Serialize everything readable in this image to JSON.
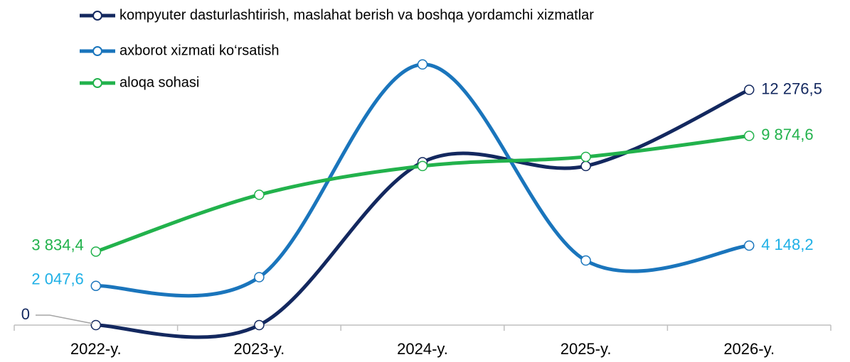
{
  "chart_data": {
    "type": "line",
    "smooth": true,
    "categories": [
      "2022-y.",
      "2023-y.",
      "2024-y.",
      "2025-y.",
      "2026-y."
    ],
    "ylim": [
      0,
      14000
    ],
    "legend": "top-left",
    "series": [
      {
        "name": "kompyuter dasturlashtirish, maslahat berish va boshqa yordamchi xizmatlar",
        "color": "#13285f",
        "label_color": "#13285f",
        "values": [
          0,
          0,
          8500,
          8300,
          12276.5
        ],
        "value_labels": [
          "0",
          null,
          null,
          null,
          "12 276,5"
        ]
      },
      {
        "name": "axborot xizmati ko‘rsatish",
        "color": "#1a75bc",
        "label_color": "#1fb0e6",
        "values": [
          2047.6,
          2500,
          13600,
          3370,
          4148.2
        ],
        "value_labels": [
          "2 047,6",
          null,
          null,
          null,
          "4 148,2"
        ]
      },
      {
        "name": "aloqa sohasi",
        "color": "#22b24c",
        "label_color": "#22b24c",
        "values": [
          3834.4,
          6800,
          8300,
          8780,
          9874.6
        ],
        "value_labels": [
          "3 834,4",
          null,
          null,
          null,
          "9 874,6"
        ]
      }
    ]
  }
}
